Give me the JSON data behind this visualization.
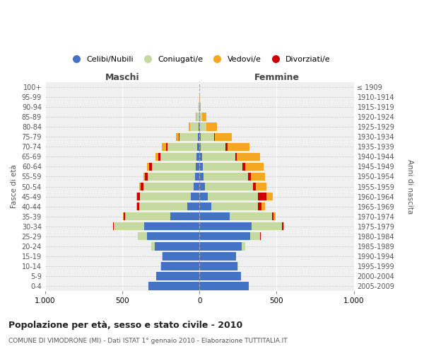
{
  "age_groups": [
    "0-4",
    "5-9",
    "10-14",
    "15-19",
    "20-24",
    "25-29",
    "30-34",
    "35-39",
    "40-44",
    "45-49",
    "50-54",
    "55-59",
    "60-64",
    "65-69",
    "70-74",
    "75-79",
    "80-84",
    "85-89",
    "90-94",
    "95-99",
    "100+"
  ],
  "birth_years": [
    "2005-2009",
    "2000-2004",
    "1995-1999",
    "1990-1994",
    "1985-1989",
    "1980-1984",
    "1975-1979",
    "1970-1974",
    "1965-1969",
    "1960-1964",
    "1955-1959",
    "1950-1954",
    "1945-1949",
    "1940-1944",
    "1935-1939",
    "1930-1934",
    "1925-1929",
    "1920-1924",
    "1915-1919",
    "1910-1914",
    "≤ 1909"
  ],
  "male": {
    "celibi": [
      330,
      280,
      250,
      240,
      290,
      340,
      360,
      190,
      80,
      55,
      38,
      28,
      22,
      18,
      14,
      8,
      4,
      2,
      0,
      0,
      0
    ],
    "coniugati": [
      1,
      2,
      2,
      5,
      20,
      60,
      195,
      290,
      310,
      330,
      325,
      305,
      285,
      235,
      195,
      120,
      55,
      18,
      3,
      1,
      0
    ],
    "vedovi": [
      0,
      0,
      0,
      0,
      0,
      0,
      1,
      2,
      2,
      5,
      8,
      10,
      14,
      18,
      25,
      18,
      10,
      4,
      1,
      0,
      0
    ],
    "divorziati": [
      0,
      0,
      0,
      0,
      0,
      1,
      5,
      12,
      15,
      18,
      20,
      20,
      18,
      12,
      8,
      5,
      2,
      0,
      0,
      0,
      0
    ]
  },
  "female": {
    "nubili": [
      320,
      268,
      248,
      235,
      275,
      330,
      340,
      195,
      75,
      55,
      35,
      28,
      20,
      16,
      10,
      6,
      4,
      2,
      0,
      0,
      0
    ],
    "coniugate": [
      1,
      2,
      2,
      4,
      22,
      65,
      195,
      275,
      305,
      325,
      310,
      285,
      260,
      215,
      160,
      90,
      40,
      15,
      4,
      1,
      0
    ],
    "vedove": [
      0,
      0,
      0,
      0,
      0,
      1,
      5,
      10,
      22,
      42,
      65,
      90,
      120,
      148,
      145,
      110,
      65,
      28,
      5,
      1,
      0
    ],
    "divorziate": [
      0,
      0,
      0,
      0,
      0,
      2,
      8,
      12,
      22,
      55,
      22,
      20,
      18,
      12,
      10,
      6,
      3,
      1,
      0,
      0,
      0
    ]
  },
  "colors": {
    "celibi": "#4472c4",
    "coniugati": "#c5d9a0",
    "vedovi": "#f5a623",
    "divorziati": "#cc0000"
  },
  "xlim": 1000,
  "title": "Popolazione per età, sesso e stato civile - 2010",
  "subtitle": "COMUNE DI VIMODRONE (MI) - Dati ISTAT 1° gennaio 2010 - Elaborazione TUTTITALIA.IT",
  "ylabel_left": "Fasce di età",
  "ylabel_right": "Anni di nascita",
  "xlabel_left": "Maschi",
  "xlabel_right": "Femmine",
  "legend_labels": [
    "Celibi/Nubili",
    "Coniugati/e",
    "Vedovi/e",
    "Divorziati/e"
  ],
  "bg_color": "#f0f0f0"
}
